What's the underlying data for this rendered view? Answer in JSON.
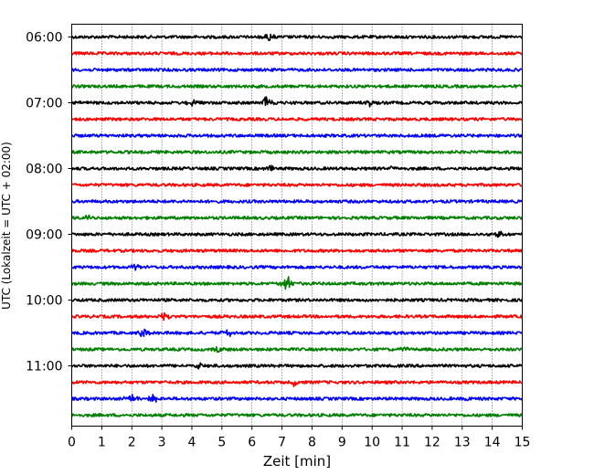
{
  "chart_data": {
    "type": "line",
    "title": "",
    "xlabel": "Zeit  [min]",
    "ylabel": "UTC (Lokalzeit = UTC + 02:00)",
    "xlim": [
      0,
      15
    ],
    "x_ticks": [
      "0",
      "1",
      "2",
      "3",
      "4",
      "5",
      "6",
      "7",
      "8",
      "9",
      "10",
      "11",
      "12",
      "13",
      "14",
      "15"
    ],
    "y_ticks": [
      "06:00",
      "07:00",
      "08:00",
      "09:00",
      "10:00",
      "11:00"
    ],
    "grid": "vertical dotted",
    "trace_interval_minutes": 15,
    "color_cycle": [
      "#000000",
      "#ff0000",
      "#0000ff",
      "#008000"
    ],
    "series": [
      {
        "start": "06:00",
        "events": [
          {
            "x": 6.6,
            "amp": 0.5
          }
        ]
      },
      {
        "start": "06:15",
        "events": []
      },
      {
        "start": "06:30",
        "events": []
      },
      {
        "start": "06:45",
        "events": []
      },
      {
        "start": "07:00",
        "events": [
          {
            "x": 6.5,
            "amp": 1.0
          },
          {
            "x": 4.0,
            "amp": 0.4
          },
          {
            "x": 9.9,
            "amp": 0.35
          }
        ]
      },
      {
        "start": "07:15",
        "events": []
      },
      {
        "start": "07:30",
        "events": []
      },
      {
        "start": "07:45",
        "events": []
      },
      {
        "start": "08:00",
        "events": [
          {
            "x": 6.6,
            "amp": 0.35
          },
          {
            "x": 10.7,
            "amp": 0.3
          }
        ]
      },
      {
        "start": "08:15",
        "events": []
      },
      {
        "start": "08:30",
        "events": []
      },
      {
        "start": "08:45",
        "events": [
          {
            "x": 0.5,
            "amp": 0.3
          }
        ]
      },
      {
        "start": "09:00",
        "events": [
          {
            "x": 14.2,
            "amp": 0.45
          }
        ]
      },
      {
        "start": "09:15",
        "events": []
      },
      {
        "start": "09:30",
        "events": [
          {
            "x": 2.1,
            "amp": 0.3
          }
        ]
      },
      {
        "start": "09:45",
        "events": [
          {
            "x": 7.2,
            "amp": 1.2
          }
        ]
      },
      {
        "start": "10:00",
        "events": []
      },
      {
        "start": "10:15",
        "events": [
          {
            "x": 3.1,
            "amp": 0.4
          }
        ]
      },
      {
        "start": "10:30",
        "events": [
          {
            "x": 2.4,
            "amp": 0.5
          },
          {
            "x": 5.2,
            "amp": 0.45
          }
        ]
      },
      {
        "start": "10:45",
        "events": [
          {
            "x": 4.9,
            "amp": 0.3
          },
          {
            "x": 11.1,
            "amp": 0.3
          }
        ]
      },
      {
        "start": "11:00",
        "events": [
          {
            "x": 4.3,
            "amp": 0.45
          }
        ]
      },
      {
        "start": "11:15",
        "events": [
          {
            "x": 7.4,
            "amp": 0.4
          }
        ]
      },
      {
        "start": "11:30",
        "events": [
          {
            "x": 2.0,
            "amp": 0.55
          },
          {
            "x": 2.7,
            "amp": 0.6
          },
          {
            "x": 13.1,
            "amp": 0.35
          }
        ]
      },
      {
        "start": "11:45",
        "events": []
      }
    ]
  }
}
